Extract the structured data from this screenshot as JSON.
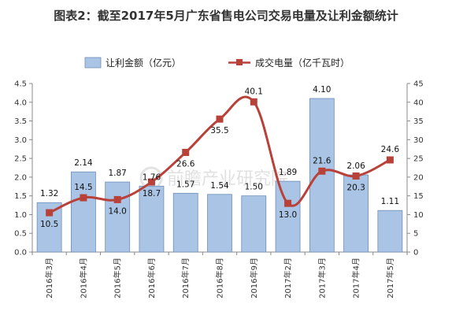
{
  "chart_data": {
    "type": "bar",
    "title": "图表2：截至2017年5月广东省售电公司交易电量及让利金额统计",
    "categories": [
      "2016年3月",
      "2016年4月",
      "2016年5月",
      "2016年6月",
      "2016年7月",
      "2016年8月",
      "2016年9月",
      "2017年2月",
      "2017年3月",
      "2017年4月",
      "2017年5月"
    ],
    "series": [
      {
        "name": "让利金额（亿元）",
        "type": "bar",
        "axis": "left",
        "color": "#a9c4e4",
        "values": [
          1.32,
          2.14,
          1.87,
          1.76,
          1.57,
          1.54,
          1.5,
          1.89,
          4.1,
          2.06,
          1.11
        ],
        "labels": [
          "1.32",
          "2.14",
          "1.87",
          "1.76",
          "1.57",
          "1.54",
          "1.50",
          "1.89",
          "4.10",
          "2.06",
          "1.11"
        ]
      },
      {
        "name": "成交电量（亿千瓦时）",
        "type": "line",
        "axis": "right",
        "color": "#b8413a",
        "values": [
          10.5,
          14.5,
          14.0,
          18.7,
          26.6,
          35.5,
          40.1,
          13.0,
          21.6,
          20.3,
          24.6
        ],
        "labels": [
          "10.5",
          "14.5",
          "14.0",
          "18.7",
          "26.6",
          "35.5",
          "40.1",
          "13.0",
          "21.6",
          "20.3",
          "24.6"
        ]
      }
    ],
    "ylim_left": [
      0,
      4.5
    ],
    "yticks_left": [
      "0.0",
      "0.5",
      "1.0",
      "1.5",
      "2.0",
      "2.5",
      "3.0",
      "3.5",
      "4.0",
      "4.5"
    ],
    "ylim_right": [
      0,
      45
    ],
    "yticks_right": [
      "0",
      "5",
      "10",
      "15",
      "20",
      "25",
      "30",
      "35",
      "40",
      "45"
    ],
    "grid": false,
    "legend": "top",
    "watermark": "前瞻产业研究院"
  }
}
